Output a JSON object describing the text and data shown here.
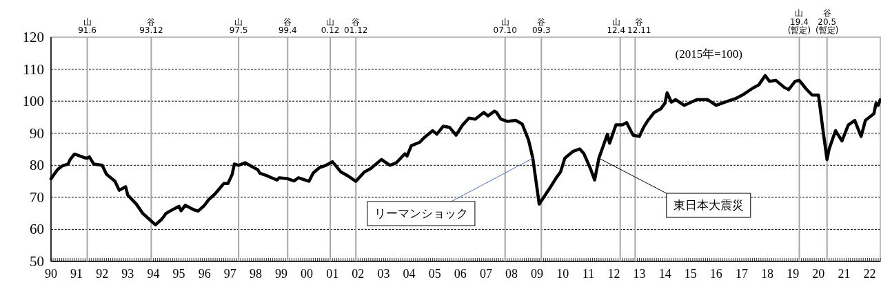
{
  "chart_data": {
    "type": "line",
    "series": [
      {
        "color": "#000000",
        "line_style": "solid",
        "x": [
          "1990-01",
          "1990-04",
          "1990-06",
          "1990-09",
          "1990-10",
          "1990-12",
          "1991-05",
          "1991-06",
          "1991-07",
          "1991-09",
          "1992-01",
          "1992-03",
          "1992-07",
          "1992-09",
          "1992-12",
          "1993-01",
          "1993-05",
          "1993-08",
          "1993-11",
          "1994-02",
          "1994-05",
          "1994-07",
          "1994-11",
          "1995-01",
          "1995-02",
          "1995-04",
          "1995-08",
          "1995-10",
          "1996-01",
          "1996-03",
          "1996-06",
          "1996-10",
          "1996-12",
          "1997-02",
          "1997-03",
          "1997-05",
          "1997-08",
          "1997-12",
          "1998-02",
          "1998-03",
          "1998-06",
          "1998-11",
          "1998-12",
          "1999-04",
          "1999-07",
          "1999-09",
          "2000-02",
          "2000-04",
          "2000-07",
          "2000-10",
          "2001-01",
          "2001-05",
          "2001-08",
          "2001-12",
          "2002-04",
          "2002-07",
          "2002-12",
          "2003-04",
          "2003-07",
          "2003-11",
          "2003-12",
          "2004-02",
          "2004-06",
          "2004-08",
          "2004-12",
          "2005-02",
          "2005-05",
          "2005-08",
          "2005-11",
          "2006-02",
          "2006-05",
          "2006-08",
          "2006-12",
          "2007-02",
          "2007-05",
          "2007-06",
          "2007-08",
          "2007-11",
          "2008-03",
          "2008-06",
          "2008-09",
          "2008-11",
          "2009-02",
          "2009-07",
          "2009-10",
          "2009-12",
          "2010-02",
          "2010-06",
          "2010-09",
          "2010-11",
          "2011-02",
          "2011-04",
          "2011-06",
          "2011-10",
          "2011-11",
          "2012-02",
          "2012-05",
          "2012-07",
          "2012-10",
          "2013-01",
          "2013-03",
          "2013-05",
          "2013-08",
          "2013-11",
          "2014-01",
          "2014-02",
          "2014-04",
          "2014-06",
          "2014-10",
          "2015-04",
          "2015-09",
          "2016-01",
          "2016-05",
          "2016-10",
          "2017-02",
          "2017-06",
          "2017-09",
          "2017-12",
          "2018-02",
          "2018-05",
          "2018-09",
          "2018-11",
          "2019-02",
          "2019-04",
          "2019-07",
          "2019-10",
          "2020-01",
          "2020-03",
          "2020-05",
          "2020-06",
          "2020-09",
          "2020-12",
          "2021-03",
          "2021-06",
          "2021-09",
          "2021-11",
          "2022-03",
          "2022-04",
          "2022-05",
          "2022-06"
        ],
        "values": [
          75.8,
          78.6,
          79.7,
          80.4,
          81.8,
          83.5,
          82.3,
          82.2,
          82.6,
          80.4,
          80.0,
          77.2,
          75.0,
          72.2,
          73.3,
          70.7,
          67.9,
          65.0,
          63.2,
          61.4,
          63.2,
          65.0,
          66.5,
          67.2,
          65.8,
          67.5,
          66.1,
          65.7,
          67.5,
          69.3,
          71.1,
          74.3,
          74.3,
          77.2,
          80.4,
          80.0,
          80.8,
          79.3,
          78.6,
          77.5,
          76.8,
          75.4,
          76.1,
          75.8,
          75.1,
          76.1,
          75.0,
          77.6,
          79.3,
          80.0,
          81.1,
          77.9,
          76.8,
          75.0,
          77.9,
          79.0,
          81.8,
          80.0,
          80.8,
          83.6,
          82.9,
          86.1,
          87.2,
          88.6,
          90.8,
          89.7,
          92.2,
          91.8,
          89.4,
          92.5,
          94.7,
          94.4,
          96.5,
          95.4,
          96.9,
          96.5,
          94.4,
          93.7,
          94.0,
          92.9,
          87.9,
          82.2,
          67.9,
          72.9,
          76.1,
          77.9,
          82.2,
          84.4,
          85.1,
          83.6,
          79.0,
          75.4,
          82.2,
          89.7,
          86.9,
          92.6,
          92.6,
          93.3,
          89.4,
          89.0,
          91.9,
          94.0,
          96.5,
          97.6,
          99.4,
          102.6,
          99.7,
          100.5,
          98.7,
          100.5,
          100.5,
          98.7,
          99.7,
          100.8,
          102.2,
          104.0,
          105.1,
          108.0,
          106.2,
          106.5,
          104.3,
          103.6,
          106.2,
          106.5,
          104.0,
          101.9,
          101.9,
          91.5,
          81.8,
          85.1,
          90.8,
          87.6,
          92.6,
          94.0,
          89.0,
          94.0,
          96.1,
          99.4,
          98.7,
          100.5
        ]
      }
    ],
    "xlim": [
      "1990-01",
      "2022-06"
    ],
    "xticks": [
      {
        "value": "1990-01",
        "label": "90"
      },
      {
        "value": "1991-01",
        "label": "91"
      },
      {
        "value": "1992-01",
        "label": "92"
      },
      {
        "value": "1993-01",
        "label": "93"
      },
      {
        "value": "1994-01",
        "label": "94"
      },
      {
        "value": "1995-01",
        "label": "95"
      },
      {
        "value": "1996-01",
        "label": "96"
      },
      {
        "value": "1997-01",
        "label": "97"
      },
      {
        "value": "1998-01",
        "label": "98"
      },
      {
        "value": "1999-01",
        "label": "99"
      },
      {
        "value": "2000-01",
        "label": "00"
      },
      {
        "value": "2001-01",
        "label": "01"
      },
      {
        "value": "2002-01",
        "label": "02"
      },
      {
        "value": "2003-01",
        "label": "03"
      },
      {
        "value": "2004-01",
        "label": "04"
      },
      {
        "value": "2005-01",
        "label": "05"
      },
      {
        "value": "2006-01",
        "label": "06"
      },
      {
        "value": "2007-01",
        "label": "07"
      },
      {
        "value": "2008-01",
        "label": "08"
      },
      {
        "value": "2009-01",
        "label": "09"
      },
      {
        "value": "2010-01",
        "label": "10"
      },
      {
        "value": "2011-01",
        "label": "11"
      },
      {
        "value": "2012-01",
        "label": "12"
      },
      {
        "value": "2013-01",
        "label": "13"
      },
      {
        "value": "2014-01",
        "label": "14"
      },
      {
        "value": "2015-01",
        "label": "15"
      },
      {
        "value": "2016-01",
        "label": "16"
      },
      {
        "value": "2017-01",
        "label": "17"
      },
      {
        "value": "2018-01",
        "label": "18"
      },
      {
        "value": "2019-01",
        "label": "19"
      },
      {
        "value": "2020-01",
        "label": "20"
      },
      {
        "value": "2021-01",
        "label": "21"
      },
      {
        "value": "2022-01",
        "label": "22"
      }
    ],
    "ylim": [
      50,
      120
    ],
    "yticks": [
      50,
      60,
      70,
      80,
      90,
      100,
      110,
      120
    ],
    "grid": "y",
    "ref_lines": [
      {
        "axis": "x",
        "value": "1991-06",
        "label": "山\n91.6",
        "color": "#a6a6a6"
      },
      {
        "axis": "x",
        "value": "1993-12",
        "label": "谷\n93.12",
        "color": "#a6a6a6"
      },
      {
        "axis": "x",
        "value": "1997-05",
        "label": "山\n97.5",
        "color": "#a6a6a6"
      },
      {
        "axis": "x",
        "value": "1999-04",
        "label": "谷\n99.4",
        "color": "#a6a6a6"
      },
      {
        "axis": "x",
        "value": "2000-12",
        "label": "山\n0.12",
        "color": "#a6a6a6"
      },
      {
        "axis": "x",
        "value": "2001-12",
        "label": "谷\n01.12",
        "color": "#a6a6a6"
      },
      {
        "axis": "x",
        "value": "2007-10",
        "label": "山\n07.10",
        "color": "#a6a6a6"
      },
      {
        "axis": "x",
        "value": "2009-03",
        "label": "谷\n09.3",
        "color": "#a6a6a6"
      },
      {
        "axis": "x",
        "value": "2012-04",
        "label": "山\n12.4",
        "color": "#a6a6a6"
      },
      {
        "axis": "x",
        "value": "2012-11",
        "label": "谷\n12.11",
        "color": "#a6a6a6"
      },
      {
        "axis": "x",
        "value": "2019-04",
        "label": "山\n19.4\n(暫定)",
        "color": "#a6a6a6"
      },
      {
        "axis": "x",
        "value": "2020-05",
        "label": "谷\n20.5\n(暫定)",
        "color": "#a6a6a6"
      }
    ],
    "annotations": [
      "(2015年=100)",
      {
        "text": "リーマンショック",
        "x": "2008-11",
        "y": 82.2
      },
      {
        "text": "東日本大震災",
        "x": "2011-06",
        "y": 82.2
      }
    ]
  }
}
